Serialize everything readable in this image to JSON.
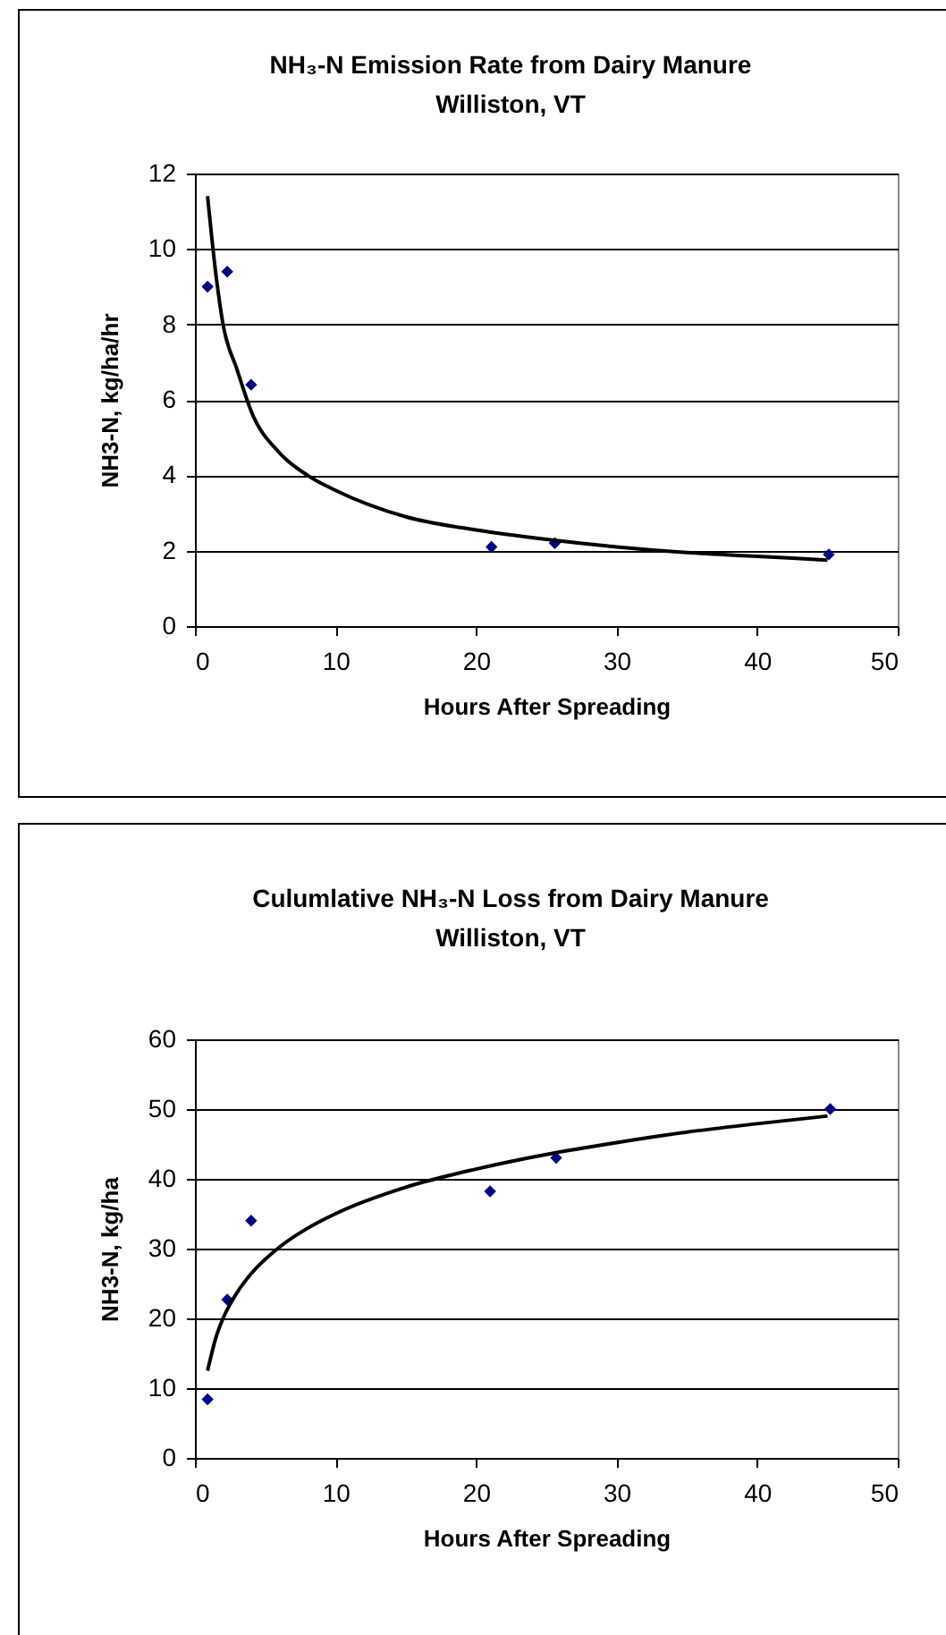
{
  "chart_data": [
    {
      "type": "scatter",
      "title": "NH₃-N Emission Rate from  Dairy Manure",
      "subtitle": "Williston, VT",
      "xlabel": "Hours After Spreading",
      "ylabel": "NH3-N, kg/ha/hr",
      "xlim": [
        0,
        50
      ],
      "xticks": [
        0,
        10,
        20,
        30,
        40,
        50
      ],
      "ylim": [
        0,
        12
      ],
      "yticks": [
        0,
        2,
        4,
        6,
        8,
        10,
        12
      ],
      "grid": "y",
      "series": [
        {
          "color": "#000080",
          "marker": "diamond",
          "x": [
            0.9,
            2.3,
            4.0,
            21.1,
            25.6,
            45.1
          ],
          "values": [
            9.0,
            9.4,
            6.4,
            2.1,
            2.2,
            1.9
          ]
        },
        {
          "type": "line",
          "color": "#000000",
          "marker": "none",
          "x": [
            0.9,
            1.5,
            2,
            3,
            4,
            6,
            8,
            10,
            15,
            20,
            25,
            30,
            35,
            40,
            45
          ],
          "values": [
            11.4,
            9.3,
            8.0,
            6.8,
            5.7,
            4.6,
            4.0,
            3.6,
            2.9,
            2.55,
            2.3,
            2.1,
            1.95,
            1.85,
            1.75
          ]
        }
      ]
    },
    {
      "type": "scatter",
      "title": "Culumlative NH₃-N Loss from Dairy Manure",
      "subtitle": "Williston, VT",
      "xlabel": "Hours After Spreading",
      "ylabel": "NH3-N, kg/ha",
      "xlim": [
        0,
        50
      ],
      "xticks": [
        0,
        10,
        20,
        30,
        40,
        50
      ],
      "ylim": [
        0,
        60
      ],
      "yticks": [
        0,
        10,
        20,
        30,
        40,
        50,
        60
      ],
      "grid": "y",
      "series": [
        {
          "color": "#000080",
          "marker": "diamond",
          "x": [
            0.9,
            2.3,
            4.0,
            21.0,
            25.7,
            45.2
          ],
          "values": [
            8.4,
            22.7,
            34,
            38.2,
            43,
            50
          ]
        },
        {
          "type": "line",
          "color": "#000000",
          "marker": "none",
          "x": [
            0.9,
            1.5,
            2,
            3,
            4,
            6,
            8,
            10,
            15,
            20,
            25,
            30,
            35,
            40,
            45
          ],
          "values": [
            12.5,
            17.3,
            20,
            23.7,
            26.4,
            30.2,
            32.9,
            35,
            38.8,
            41.4,
            43.5,
            45.2,
            46.7,
            47.9,
            49
          ]
        }
      ]
    }
  ]
}
